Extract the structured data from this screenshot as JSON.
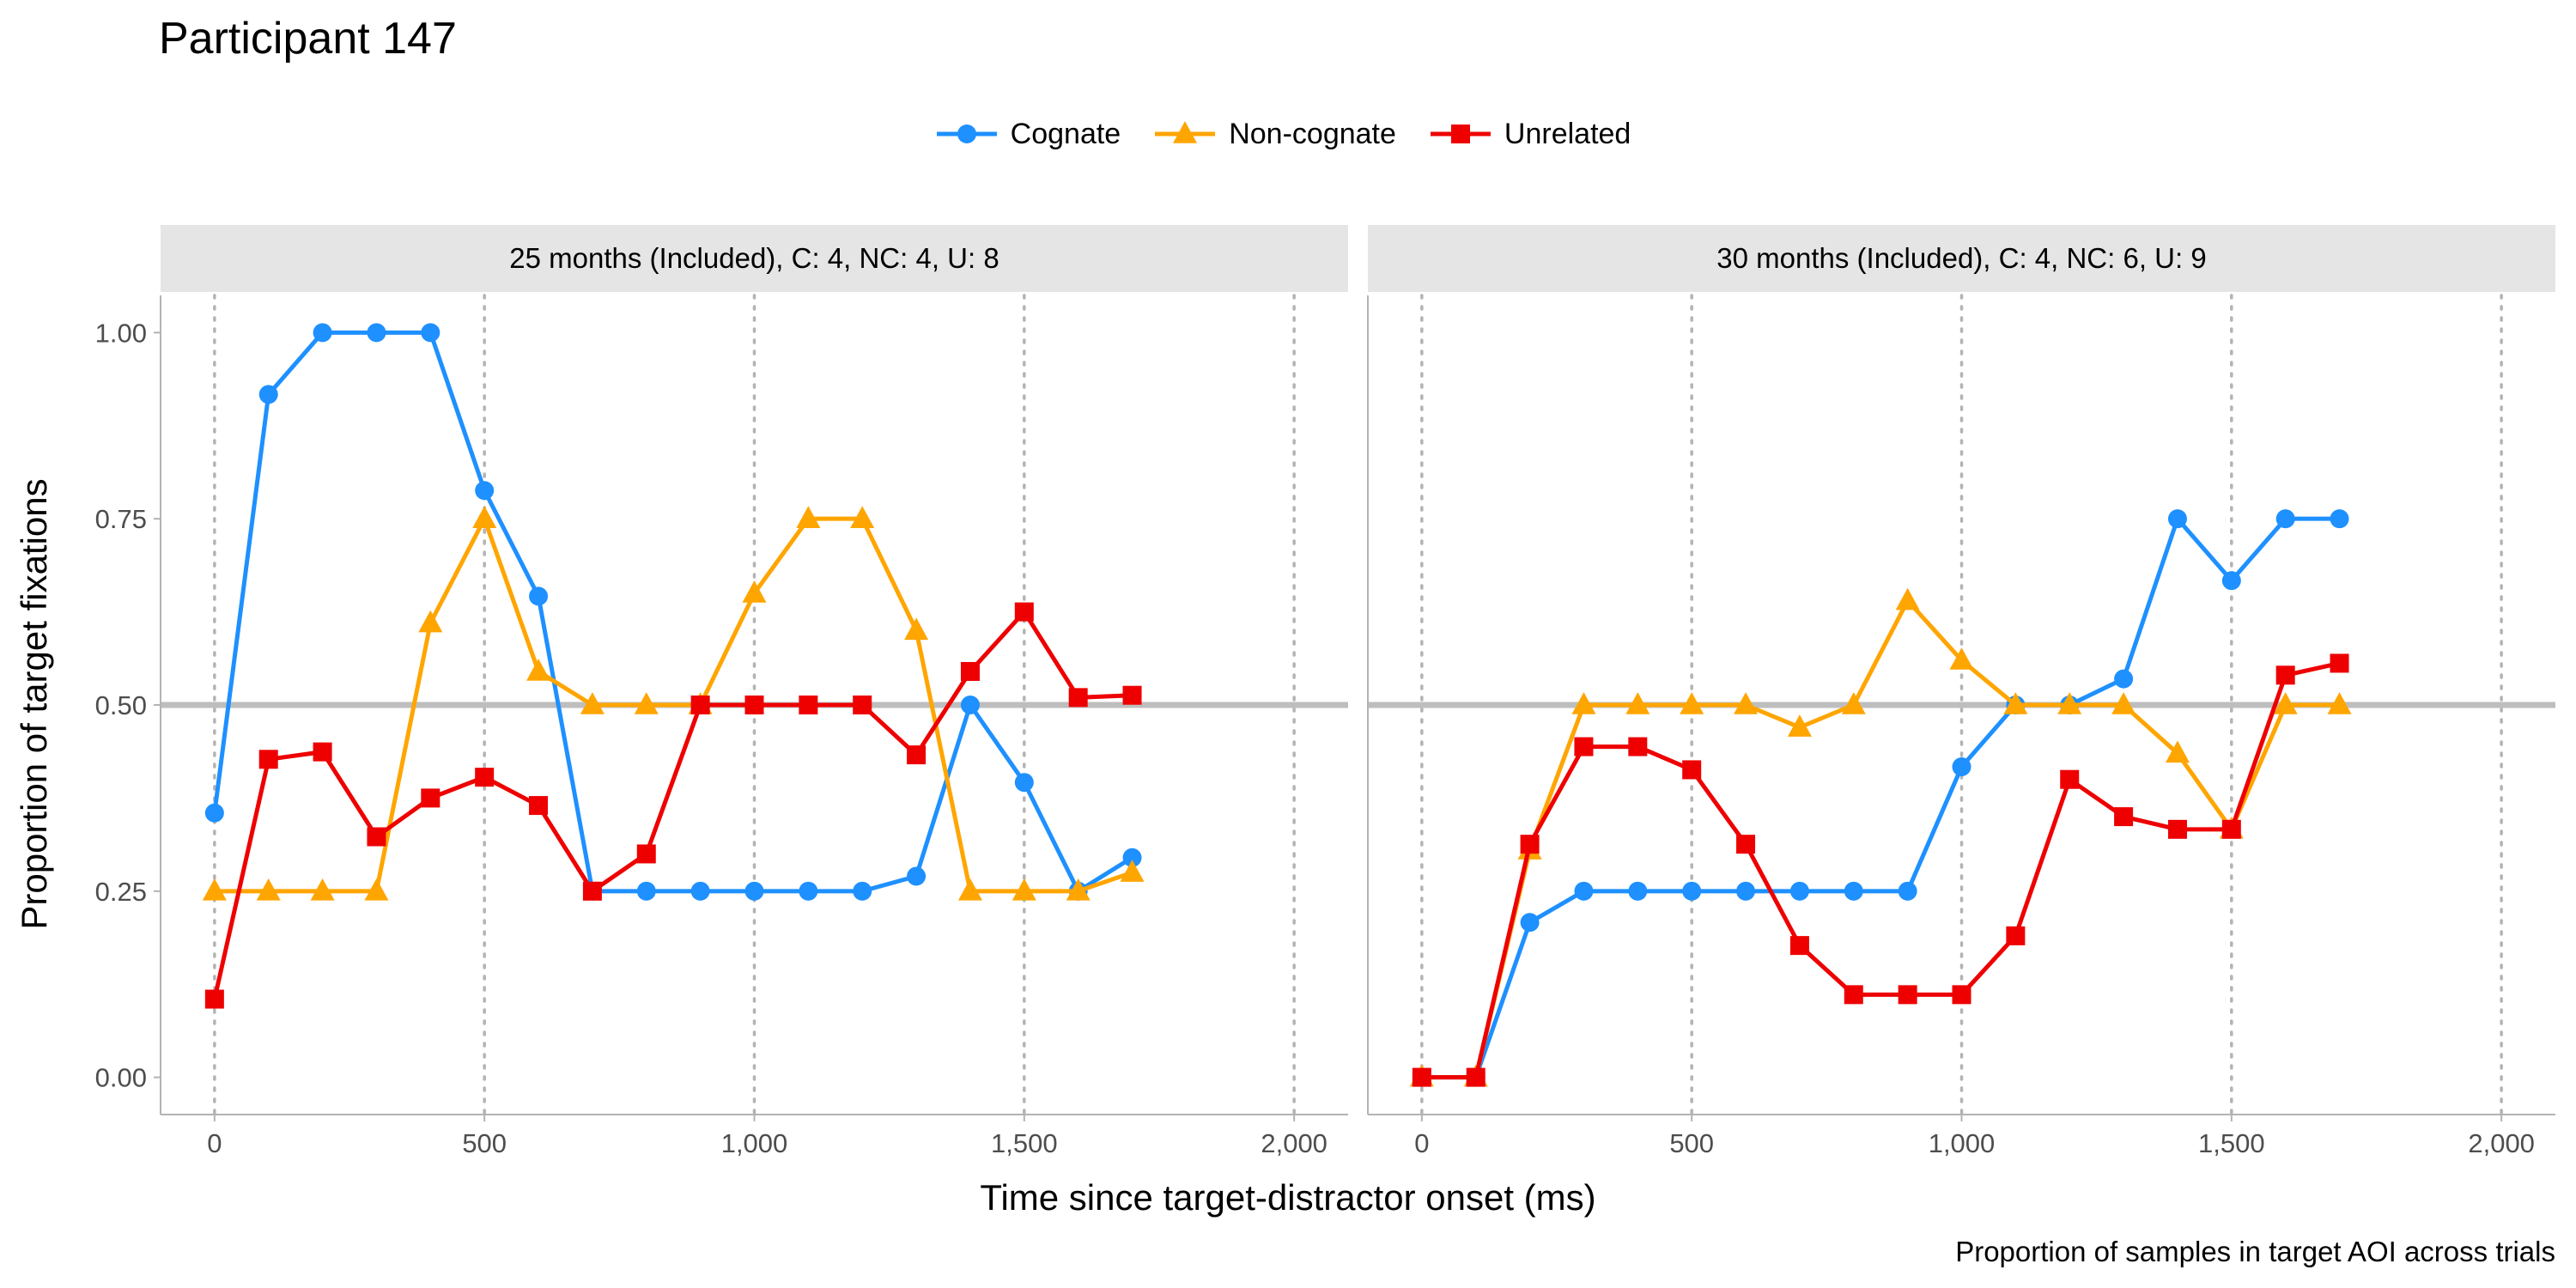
{
  "chart_data": {
    "type": "line",
    "title": "Participant 147",
    "xlabel": "Time since target-distractor onset (ms)",
    "ylabel": "Proportion of target fixations",
    "caption": "Proportion of samples in target AOI across trials",
    "xlim": [
      -100,
      2100
    ],
    "ylim": [
      -0.05,
      1.05
    ],
    "x_ticks": [
      0,
      500,
      1000,
      1500,
      2000
    ],
    "x_tick_labels": [
      "0",
      "500",
      "1,000",
      "1,500",
      "2,000"
    ],
    "y_ticks": [
      0,
      0.25,
      0.5,
      0.75,
      1
    ],
    "y_tick_labels": [
      "0.00",
      "0.25",
      "0.50",
      "0.75",
      "1.00"
    ],
    "reference_line_y": 0.5,
    "legend_position": "top",
    "grid": "dotted vertical at x ticks",
    "series_styles": [
      {
        "name": "Cognate",
        "color": "#1E90FF",
        "marker": "circle"
      },
      {
        "name": "Non-cognate",
        "color": "#FFA500",
        "marker": "triangle"
      },
      {
        "name": "Unrelated",
        "color": "#EE0000",
        "marker": "square"
      }
    ],
    "panels": [
      {
        "strip": "25 months (Included), C: 4, NC: 4, U: 8",
        "series": [
          {
            "name": "Cognate",
            "x": [
              0,
              100,
              200,
              300,
              400,
              500,
              600,
              700,
              800,
              900,
              1000,
              1100,
              1200,
              1300,
              1400,
              1500,
              1600,
              1700
            ],
            "y": [
              0.355,
              0.917,
              1.0,
              1.0,
              1.0,
              0.788,
              0.646,
              0.25,
              0.25,
              0.25,
              0.25,
              0.25,
              0.25,
              0.27,
              0.5,
              0.396,
              0.25,
              0.295
            ]
          },
          {
            "name": "Non-cognate",
            "x": [
              0,
              100,
              200,
              300,
              400,
              500,
              600,
              700,
              800,
              900,
              1000,
              1100,
              1200,
              1300,
              1400,
              1500,
              1600,
              1700
            ],
            "y": [
              0.25,
              0.25,
              0.25,
              0.25,
              0.61,
              0.75,
              0.545,
              0.5,
              0.5,
              0.5,
              0.65,
              0.75,
              0.75,
              0.6,
              0.25,
              0.25,
              0.25,
              0.275
            ]
          },
          {
            "name": "Unrelated",
            "x": [
              0,
              100,
              200,
              300,
              400,
              500,
              600,
              700,
              800,
              900,
              1000,
              1100,
              1200,
              1300,
              1400,
              1500,
              1600,
              1700
            ],
            "y": [
              0.105,
              0.427,
              0.437,
              0.323,
              0.375,
              0.403,
              0.365,
              0.25,
              0.3,
              0.5,
              0.5,
              0.5,
              0.5,
              0.433,
              0.545,
              0.625,
              0.51,
              0.513
            ]
          }
        ]
      },
      {
        "strip": "30 months (Included), C: 4, NC: 6, U: 9",
        "series": [
          {
            "name": "Cognate",
            "x": [
              0,
              100,
              200,
              300,
              400,
              500,
              600,
              700,
              800,
              900,
              1000,
              1100,
              1200,
              1300,
              1400,
              1500,
              1600,
              1700
            ],
            "y": [
              0.0,
              0.0,
              0.208,
              0.25,
              0.25,
              0.25,
              0.25,
              0.25,
              0.25,
              0.25,
              0.417,
              0.5,
              0.5,
              0.535,
              0.75,
              0.667,
              0.75,
              0.75
            ]
          },
          {
            "name": "Non-cognate",
            "x": [
              0,
              100,
              200,
              300,
              400,
              500,
              600,
              700,
              800,
              900,
              1000,
              1100,
              1200,
              1300,
              1400,
              1500,
              1600,
              1700
            ],
            "y": [
              0.0,
              0.0,
              0.305,
              0.5,
              0.5,
              0.5,
              0.5,
              0.47,
              0.5,
              0.64,
              0.56,
              0.5,
              0.5,
              0.5,
              0.435,
              0.333,
              0.5,
              0.5
            ]
          },
          {
            "name": "Unrelated",
            "x": [
              0,
              100,
              200,
              300,
              400,
              500,
              600,
              700,
              800,
              900,
              1000,
              1100,
              1200,
              1300,
              1400,
              1500,
              1600,
              1700
            ],
            "y": [
              0.0,
              0.0,
              0.313,
              0.444,
              0.444,
              0.413,
              0.313,
              0.177,
              0.111,
              0.111,
              0.111,
              0.19,
              0.4,
              0.35,
              0.333,
              0.333,
              0.54,
              0.556
            ]
          }
        ]
      }
    ]
  }
}
